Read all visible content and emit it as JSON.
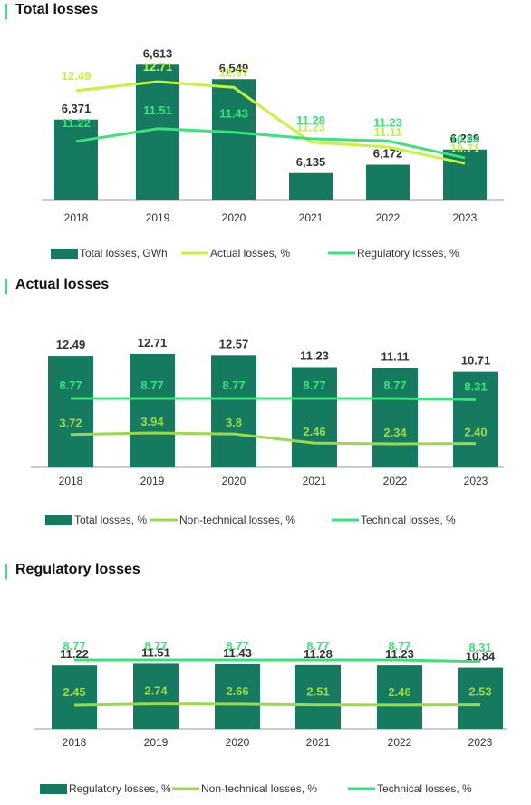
{
  "colors": {
    "bar": "#157a5f",
    "actual": "#c6f33c",
    "regulatory": "#39e27a",
    "nontech": "#9bd94b",
    "technical": "#39e27a",
    "axis": "#999999"
  },
  "panels": [
    {
      "title": "Total losses",
      "legend": [
        "Total losses, GWh",
        "Actual losses, %",
        "Regulatory losses, %"
      ]
    },
    {
      "title": "Actual losses",
      "legend": [
        "Total losses, %",
        "Non-technical losses, %",
        "Technical losses, %"
      ]
    },
    {
      "title": "Regulatory losses",
      "legend": [
        "Regulatory losses, %",
        "Non-technical losses, %",
        "Technical losses, %"
      ]
    }
  ],
  "chart_data": [
    {
      "type": "bar",
      "title": "Total losses",
      "categories": [
        "2018",
        "2019",
        "2020",
        "2021",
        "2022",
        "2023"
      ],
      "bars": {
        "name": "Total losses, GWh",
        "values": [
          6371,
          6613,
          6549,
          6135,
          6172,
          6239
        ],
        "labels": [
          "6,371",
          "6,613",
          "6,549",
          "6,135",
          "6,172",
          "6,239"
        ]
      },
      "lines": [
        {
          "name": "Actual losses, %",
          "values": [
            12.49,
            12.71,
            12.57,
            11.23,
            11.11,
            10.71
          ],
          "labels": [
            "12.49",
            "12.71",
            "12.57",
            "11.23",
            "11.11",
            "10.71"
          ]
        },
        {
          "name": "Regulatory losses, %",
          "values": [
            11.22,
            11.51,
            11.43,
            11.28,
            11.23,
            10.84
          ],
          "labels": [
            "11.22",
            "11.51",
            "11.43",
            "11.28",
            "11.23",
            "10.84"
          ]
        }
      ]
    },
    {
      "type": "bar",
      "title": "Actual losses",
      "categories": [
        "2018",
        "2019",
        "2020",
        "2021",
        "2022",
        "2023"
      ],
      "bars": {
        "name": "Total losses, %",
        "values": [
          12.49,
          12.71,
          12.57,
          11.23,
          11.11,
          10.71
        ],
        "labels": [
          "12.49",
          "12.71",
          "12.57",
          "11.23",
          "11.11",
          "10.71"
        ]
      },
      "lines": [
        {
          "name": "Non-technical losses, %",
          "values": [
            3.72,
            3.94,
            3.8,
            2.46,
            2.34,
            2.4
          ],
          "labels": [
            "3.72",
            "3.94",
            "3.8",
            "2.46",
            "2.34",
            "2.40"
          ]
        },
        {
          "name": "Technical losses, %",
          "values": [
            8.77,
            8.77,
            8.77,
            8.77,
            8.77,
            8.31
          ],
          "labels": [
            "8.77",
            "8.77",
            "8.77",
            "8.77",
            "8.77",
            "8.31"
          ]
        }
      ]
    },
    {
      "type": "bar",
      "title": "Regulatory losses",
      "categories": [
        "2018",
        "2019",
        "2020",
        "2021",
        "2022",
        "2023"
      ],
      "bars": {
        "name": "Regulatory losses, %",
        "values": [
          11.22,
          11.51,
          11.43,
          11.28,
          11.23,
          10.84
        ],
        "labels": [
          "11.22",
          "11.51",
          "11.43",
          "11.28",
          "11.23",
          "10.84"
        ]
      },
      "lines": [
        {
          "name": "Non-technical losses, %",
          "values": [
            2.45,
            2.74,
            2.66,
            2.51,
            2.46,
            2.53
          ],
          "labels": [
            "2.45",
            "2.74",
            "2.66",
            "2.51",
            "2.46",
            "2.53"
          ]
        },
        {
          "name": "Technical losses, %",
          "values": [
            8.77,
            8.77,
            8.77,
            8.77,
            8.77,
            8.31
          ],
          "labels": [
            "8.77",
            "8.77",
            "8.77",
            "8.77",
            "8.77",
            "8.31"
          ]
        }
      ]
    }
  ]
}
